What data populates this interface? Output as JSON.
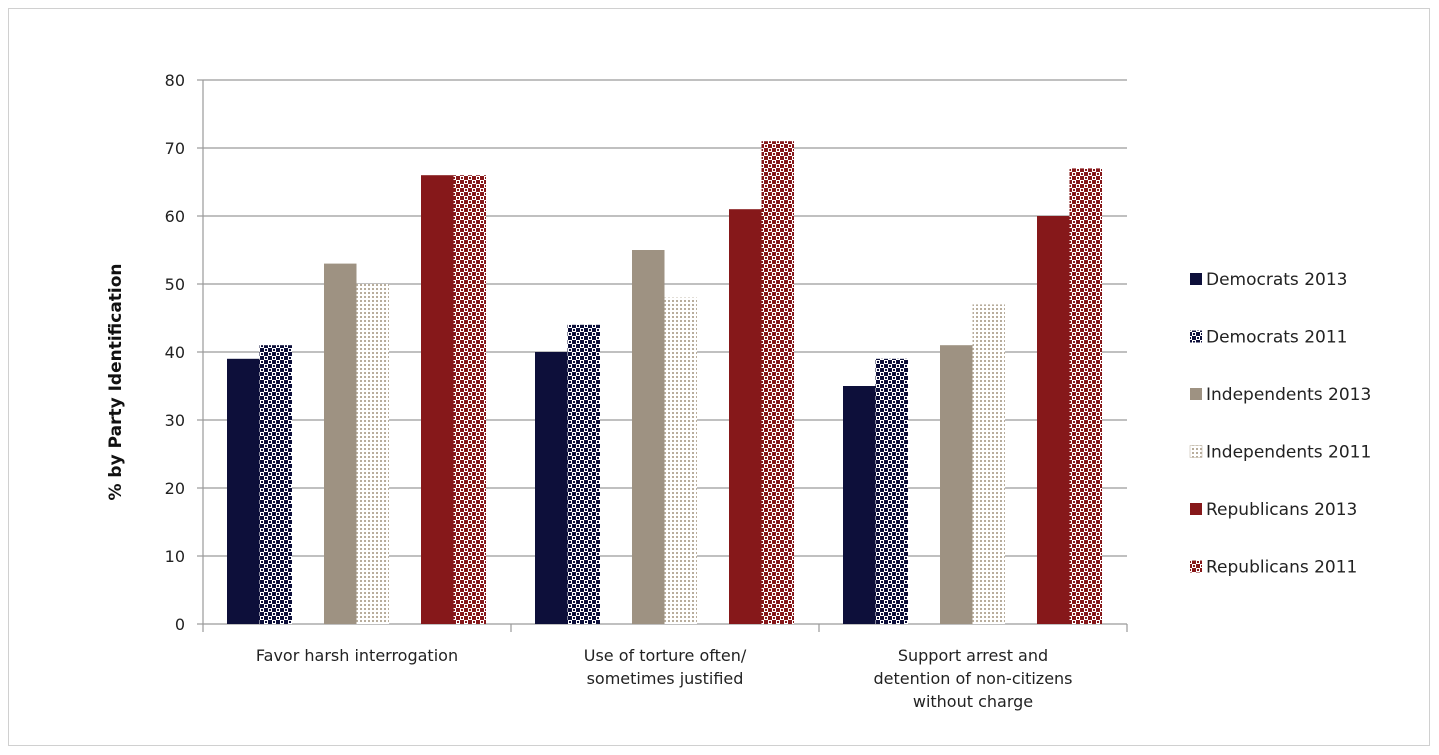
{
  "chart_data": {
    "type": "bar",
    "ylabel": "% by Party Identification",
    "xlabel": "",
    "ylim": [
      0,
      80
    ],
    "yticks": [
      0,
      10,
      20,
      30,
      40,
      50,
      60,
      70,
      80
    ],
    "grid": true,
    "legend_position": "right",
    "categories": [
      [
        "Favor harsh interrogation"
      ],
      [
        "Use of torture often/",
        "sometimes justified"
      ],
      [
        "Support arrest and",
        "detention of non-citizens",
        "without charge"
      ]
    ],
    "series": [
      {
        "name": "Democrats 2013",
        "values": [
          39,
          40,
          35
        ],
        "color": "#0d0f3a",
        "pattern": "solid"
      },
      {
        "name": "Democrats 2011",
        "values": [
          41,
          44,
          39
        ],
        "color": "#0d0f3a",
        "pattern": "checker"
      },
      {
        "name": "Independents 2013",
        "values": [
          53,
          55,
          41
        ],
        "color": "#9e9282",
        "pattern": "solid"
      },
      {
        "name": "Independents 2011",
        "values": [
          50,
          48,
          47
        ],
        "color": "#b8ad9c",
        "pattern": "dots"
      },
      {
        "name": "Republicans 2013",
        "values": [
          66,
          61,
          60
        ],
        "color": "#86181a",
        "pattern": "solid"
      },
      {
        "name": "Republicans 2011",
        "values": [
          66,
          71,
          67
        ],
        "color": "#86181a",
        "pattern": "checker"
      }
    ]
  }
}
